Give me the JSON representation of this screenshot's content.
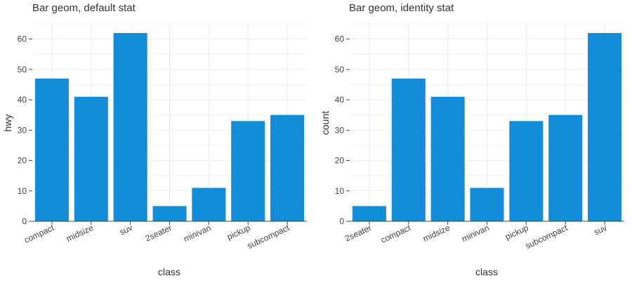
{
  "colors": {
    "bar": "#118dd9",
    "grid": "#ebebeb",
    "axis": "#444444",
    "text": "#333333"
  },
  "chart_data": [
    {
      "type": "bar",
      "title": "Bar geom, default stat",
      "xlabel": "class",
      "ylabel": "hwy",
      "categories": [
        "compact",
        "midsize",
        "suv",
        "2seater",
        "minivan",
        "pickup",
        "subcompact"
      ],
      "values": [
        47,
        41,
        62,
        5,
        11,
        33,
        35
      ],
      "ylim": [
        0,
        65
      ],
      "yticks": [
        0,
        10,
        20,
        30,
        40,
        50,
        60
      ],
      "grid": true,
      "legend": "none"
    },
    {
      "type": "bar",
      "title": "Bar geom, identity stat",
      "xlabel": "class",
      "ylabel": "count",
      "categories": [
        "2seater",
        "compact",
        "midsize",
        "minivan",
        "pickup",
        "subcompact",
        "suv"
      ],
      "values": [
        5,
        47,
        41,
        11,
        33,
        35,
        62
      ],
      "ylim": [
        0,
        65
      ],
      "yticks": [
        0,
        10,
        20,
        30,
        40,
        50,
        60
      ],
      "grid": true,
      "legend": "none"
    }
  ]
}
